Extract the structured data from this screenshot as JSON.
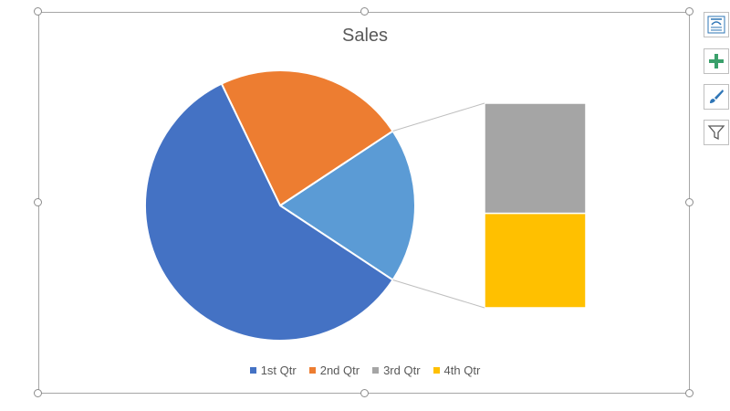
{
  "chart_data": {
    "type": "bar-of-pie",
    "title": "Sales",
    "categories": [
      "1st Qtr",
      "2nd Qtr",
      "3rd Qtr",
      "4th Qtr"
    ],
    "values": [
      8.2,
      3.2,
      1.4,
      1.2
    ],
    "colors": [
      "#4472c4",
      "#ed7d31",
      "#a5a5a5",
      "#ffc000"
    ],
    "pie_other_color": "#5b9bd5",
    "split_into_bar": [
      "3rd Qtr",
      "4th Qtr"
    ],
    "legend_position": "bottom"
  },
  "side_buttons": [
    {
      "name": "chart-elements-icon"
    },
    {
      "name": "plus-icon"
    },
    {
      "name": "brush-icon"
    },
    {
      "name": "filter-icon"
    }
  ]
}
